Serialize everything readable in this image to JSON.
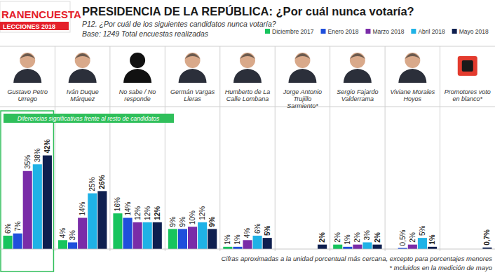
{
  "chart_data": {
    "type": "bar",
    "logo": [
      "RANENCUESTA",
      "LECCIONES 2018"
    ],
    "title": "PRESIDENCIA DE LA REPÚBLICA: ¿Por cuál nunca votaría?",
    "subtitle": "P12. ¿Por cuál de los siguientes candidatos nunca votaría?",
    "base": "Base: 1249 Total encuestas realizadas",
    "categories": [
      "Gustavo Petro Urrego",
      "Iván Duque Márquez",
      "No sabe / No responde",
      "Germán Vargas Lleras",
      "Humberto de La Calle Lombana",
      "Jorge Antonio Trujillo Sarmiento*",
      "Sergio Fajardo Valderrama",
      "Viviane Morales Hoyos",
      "Promotores voto en blanco*"
    ],
    "series": [
      {
        "name": "Diciembre 2017",
        "color": "#17c45d",
        "values": [
          6,
          4,
          16,
          9,
          1,
          null,
          2,
          null,
          null
        ],
        "value_labels": [
          "6%",
          "4%",
          "16%",
          "9%",
          "1%",
          null,
          "2%",
          null,
          null
        ]
      },
      {
        "name": "Enero 2018",
        "color": "#1f4fdc",
        "values": [
          7,
          3,
          14,
          9,
          1,
          null,
          1,
          0.5,
          null
        ],
        "value_labels": [
          "7%",
          "3%",
          "14%",
          "9%",
          "1%",
          null,
          "1%",
          "0,5%",
          null
        ]
      },
      {
        "name": "Marzo 2018",
        "color": "#7a2ca8",
        "values": [
          35,
          14,
          12,
          10,
          4,
          null,
          2,
          2,
          null
        ],
        "value_labels": [
          "35%",
          "14%",
          "12%",
          "10%",
          "4%",
          null,
          "2%",
          "2%",
          null
        ]
      },
      {
        "name": "Abril 2018",
        "color": "#1fb2e6",
        "values": [
          38,
          25,
          12,
          12,
          6,
          null,
          3,
          5,
          null
        ],
        "value_labels": [
          "38%",
          "25%",
          "12%",
          "12%",
          "6%",
          null,
          "3%",
          "5%",
          null
        ]
      },
      {
        "name": "Mayo 2018",
        "color": "#0e1f4f",
        "values": [
          42,
          26,
          12,
          9,
          5,
          2,
          2,
          1,
          0.7
        ],
        "value_labels": [
          "42%",
          "26%",
          "12%",
          "9%",
          "5%",
          "2%",
          "2%",
          "1%",
          "0,7%"
        ]
      }
    ],
    "ylim": [
      0,
      45
    ],
    "tick_labels": false,
    "grid": false,
    "data_labels": true,
    "legend": "top-right",
    "annotation": "Diferencias significativas frente al resto de candidatos",
    "footnotes": [
      "Cifras aproximadas a la unidad porcentual más cercana, excepto para porcentajes menores",
      "* Incluidos en la medición de mayo"
    ]
  }
}
